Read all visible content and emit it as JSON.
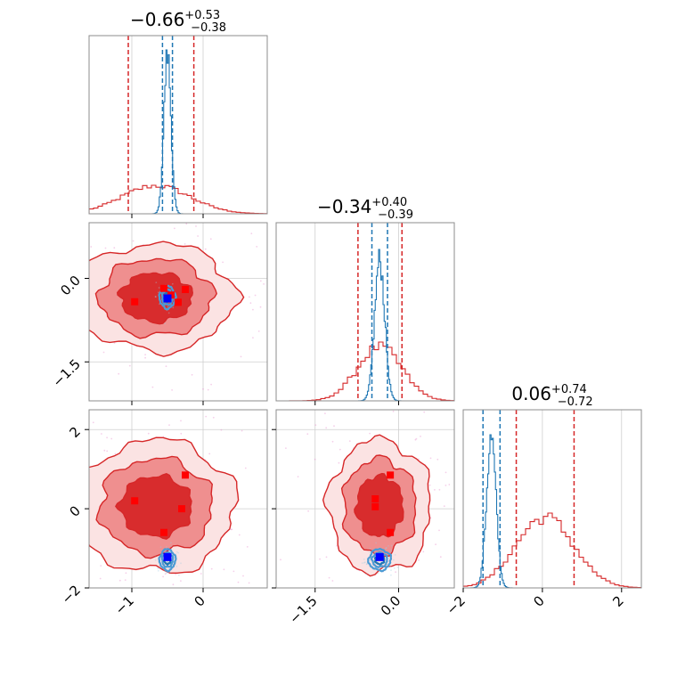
{
  "chart_data": {
    "type": "corner",
    "parameters": [
      {
        "range": [
          -1.6,
          0.9
        ],
        "title": {
          "median": "0.66",
          "median_sign": "−",
          "upper": "+0.53",
          "lower": "−0.38"
        },
        "ticks": [
          -1,
          0
        ],
        "tick_labels": [
          "−1",
          "0"
        ]
      },
      {
        "range": [
          -2.2,
          1.0
        ],
        "title": {
          "median": "0.34",
          "median_sign": "−",
          "upper": "+0.40",
          "lower": "−0.39"
        },
        "ticks": [
          -1.5,
          0.0
        ],
        "tick_labels": [
          "−1.5",
          "0.0"
        ]
      },
      {
        "range": [
          -2.0,
          2.5
        ],
        "title": {
          "median": "0.06",
          "median_sign": "",
          "upper": "+0.74",
          "lower": "−0.72"
        },
        "ticks": [
          -2,
          0,
          2
        ],
        "tick_labels": [
          "−2",
          "0",
          "2"
        ]
      }
    ],
    "series": [
      {
        "name": "",
        "color": "#d62728",
        "quantiles": [
          [
            -1.05,
            -0.13
          ],
          [
            -0.73,
            0.06
          ],
          [
            -0.66,
            0.8
          ]
        ],
        "hist_shape": [
          {
            "mean": -0.66,
            "sd": 0.48
          },
          {
            "mean": -0.34,
            "sd": 0.4
          },
          {
            "mean": 0.06,
            "sd": 0.73
          }
        ]
      },
      {
        "name": "",
        "color": "#1f77b4",
        "quantiles": [
          [
            -0.57,
            -0.43
          ],
          [
            -0.48,
            -0.2
          ],
          [
            -1.5,
            -1.07
          ]
        ],
        "hist_shape": [
          {
            "mean": -0.5,
            "sd": 0.05
          },
          {
            "mean": -0.34,
            "sd": 0.09
          },
          {
            "mean": -1.29,
            "sd": 0.12
          }
        ]
      }
    ],
    "points": {
      "red": [
        [
          [
            -0.96,
            -0.42
          ],
          [
            -0.55,
            -0.18
          ],
          [
            -0.35,
            -0.43
          ],
          [
            -0.25,
            -0.2
          ],
          [
            -0.45,
            -0.3
          ]
        ],
        [
          [
            -0.96,
            0.2
          ],
          [
            -0.55,
            -0.6
          ],
          [
            -0.3,
            0.0
          ],
          [
            -0.25,
            0.85
          ]
        ],
        [
          [
            -0.42,
            0.25
          ],
          [
            -0.42,
            0.05
          ],
          [
            -0.15,
            0.85
          ],
          [
            -0.15,
            -0.6
          ]
        ]
      ],
      "blue": [
        [
          -0.5,
          -0.36
        ],
        [
          -0.5,
          -1.22
        ],
        [
          -0.34,
          -1.22
        ]
      ]
    },
    "grid": true,
    "xlabel": "",
    "ylabel": ""
  }
}
